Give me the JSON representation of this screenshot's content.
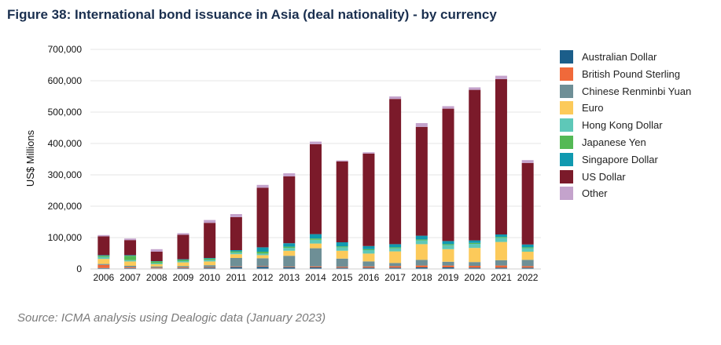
{
  "chart_data": {
    "type": "bar",
    "stacked": true,
    "title": "Figure 38: International bond issuance in Asia (deal nationality) - by currency",
    "ylabel": "US$ Millions",
    "xlabel": "",
    "ylim": [
      0,
      700000
    ],
    "yticks": [
      0,
      100000,
      200000,
      300000,
      400000,
      500000,
      600000,
      700000
    ],
    "ytick_labels": [
      "0",
      "100,000",
      "200,000",
      "300,000",
      "400,000",
      "500,000",
      "600,000",
      "700,000"
    ],
    "grid": true,
    "legend_position": "right",
    "categories": [
      "2006",
      "2007",
      "2008",
      "2009",
      "2010",
      "2011",
      "2012",
      "2013",
      "2014",
      "2015",
      "2016",
      "2017",
      "2018",
      "2019",
      "2020",
      "2021",
      "2022"
    ],
    "series": [
      {
        "name": "Australian Dollar",
        "color": "#1b5e8a",
        "values": [
          3000,
          3000,
          2000,
          3000,
          4000,
          6000,
          7000,
          5000,
          5000,
          4000,
          4000,
          4000,
          5000,
          5000,
          4000,
          4000,
          4000
        ]
      },
      {
        "name": "British Pound Sterling",
        "color": "#f0693a",
        "values": [
          10000,
          3000,
          2000,
          2000,
          2000,
          2000,
          2000,
          2000,
          3000,
          3000,
          4000,
          5000,
          6000,
          6000,
          6000,
          7000,
          5000
        ]
      },
      {
        "name": "Chinese Renminbi Yuan",
        "color": "#6e8f96",
        "values": [
          3000,
          4000,
          4000,
          4000,
          6000,
          27000,
          25000,
          35000,
          58000,
          26000,
          16000,
          10000,
          18000,
          12000,
          12000,
          17000,
          20000
        ]
      },
      {
        "name": "Euro",
        "color": "#fcca5a",
        "values": [
          16000,
          14000,
          7000,
          12000,
          12000,
          12000,
          10000,
          16000,
          15000,
          25000,
          25000,
          37000,
          50000,
          40000,
          45000,
          58000,
          26000
        ]
      },
      {
        "name": "Hong Kong Dollar",
        "color": "#5ec8b8",
        "values": [
          6000,
          4000,
          3000,
          4000,
          5000,
          5000,
          5000,
          9000,
          12000,
          11000,
          11000,
          10000,
          12000,
          13000,
          13000,
          13000,
          11000
        ]
      },
      {
        "name": "Japanese Yen",
        "color": "#54b955",
        "values": [
          4000,
          14000,
          6000,
          4000,
          4000,
          4000,
          6000,
          4000,
          4000,
          3000,
          3000,
          3000,
          3000,
          3000,
          3000,
          3000,
          3000
        ]
      },
      {
        "name": "Singapore Dollar",
        "color": "#1099b0",
        "values": [
          2000,
          2000,
          1000,
          2000,
          2000,
          4000,
          14000,
          11000,
          14000,
          13000,
          10000,
          10000,
          12000,
          10000,
          8000,
          8000,
          9000
        ]
      },
      {
        "name": "US Dollar",
        "color": "#7b1a2a",
        "values": [
          60000,
          48000,
          30000,
          78000,
          112000,
          105000,
          190000,
          213000,
          287000,
          258000,
          295000,
          463000,
          347000,
          422000,
          480000,
          495000,
          260000
        ]
      },
      {
        "name": "Other",
        "color": "#c4a3cc",
        "values": [
          4000,
          5000,
          8000,
          5000,
          9000,
          10000,
          9000,
          10000,
          8000,
          3000,
          4000,
          8000,
          12000,
          8000,
          8000,
          11000,
          9000
        ]
      }
    ]
  },
  "source": "Source: ICMA analysis using Dealogic data (January 2023)"
}
